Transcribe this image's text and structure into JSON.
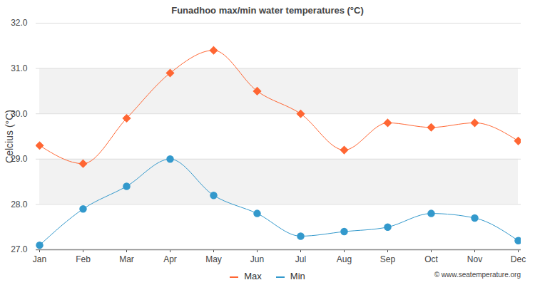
{
  "chart_data": {
    "type": "line",
    "title": "Funadhoo max/min water temperatures (°C)",
    "y_label": "Celcius (°C)",
    "categories": [
      "Jan",
      "Feb",
      "Mar",
      "Apr",
      "May",
      "Jun",
      "Jul",
      "Aug",
      "Sep",
      "Oct",
      "Nov",
      "Dec"
    ],
    "series": [
      {
        "name": "Max",
        "color": "#ff6633",
        "marker": "diamond",
        "line_style": "solid",
        "values": [
          29.3,
          28.9,
          29.9,
          30.9,
          31.4,
          30.5,
          30.0,
          29.2,
          29.8,
          29.7,
          29.8,
          29.4
        ]
      },
      {
        "name": "Min",
        "color": "#3399cc",
        "marker": "circle",
        "line_style": "solid",
        "values": [
          27.1,
          27.9,
          28.4,
          29.0,
          28.2,
          27.8,
          27.3,
          27.4,
          27.5,
          27.8,
          27.7,
          27.2
        ]
      }
    ],
    "ylim": [
      27,
      32
    ],
    "yticks": [
      27,
      28,
      29,
      30,
      31,
      32
    ],
    "grid": true,
    "legend": "bottom",
    "annotations": [
      "© www.seatemperature.org"
    ]
  }
}
